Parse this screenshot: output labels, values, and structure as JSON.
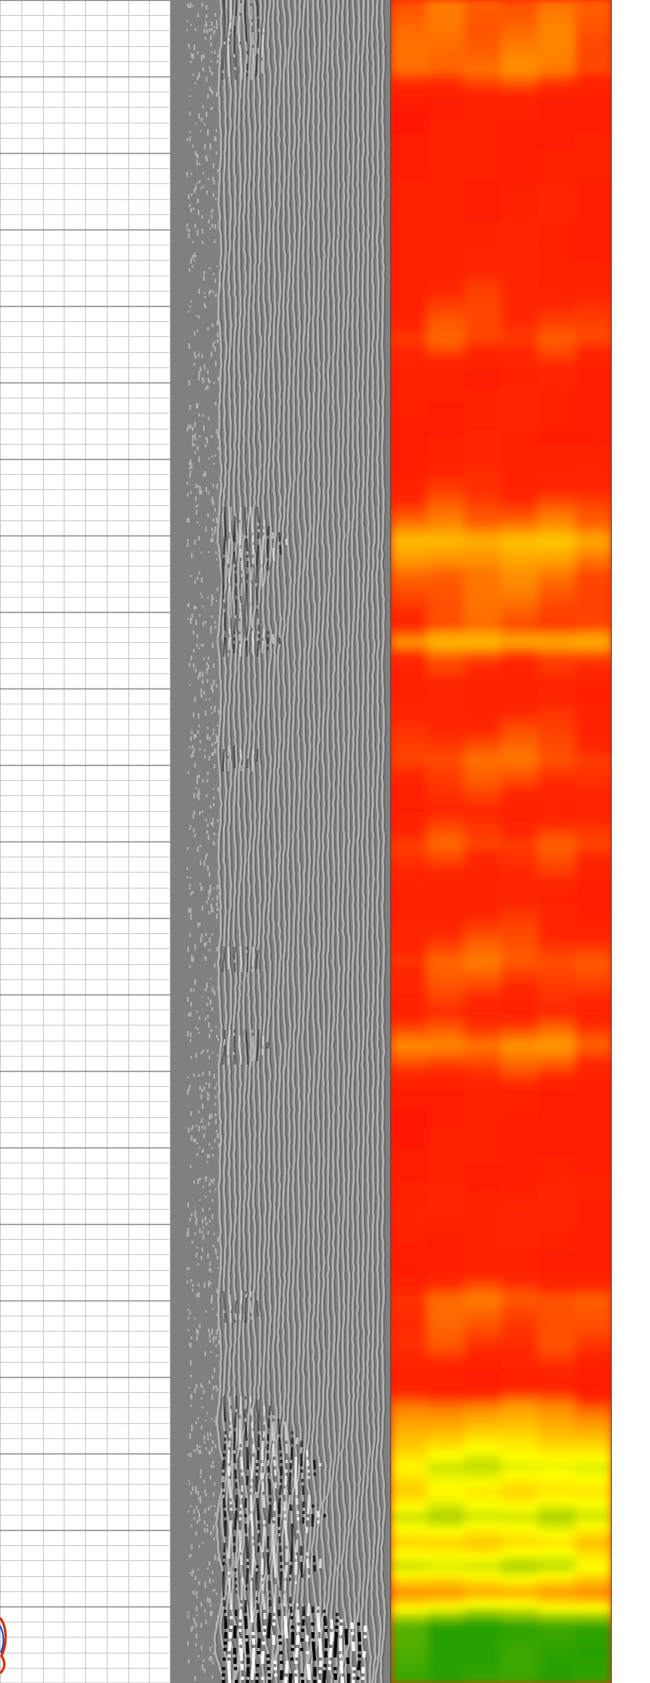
{
  "colors": {
    "grid_minor": "#c8c8c8",
    "grid_major": "#8a8a8a",
    "waveform_background": "#808080",
    "waveform_light": "#b4b4b4",
    "waveform_dark": "#000000",
    "waveform_bright": "#ffffff",
    "heatmap_red": "#ff1a00",
    "heatmap_orange": "#ff8c00",
    "heatmap_yellow": "#ffff00",
    "heatmap_green": "#33a000",
    "heatmap_border": "#444444"
  },
  "grid": {
    "minor_columns": 8,
    "minor_rows_per_major": 5,
    "major_rows": 22
  },
  "amplitude_profile": [
    {
      "depth": 0.0,
      "level": 0.5
    },
    {
      "depth": 0.04,
      "level": 0.55
    },
    {
      "depth": 0.06,
      "level": 0.2
    },
    {
      "depth": 0.13,
      "level": 0.25
    },
    {
      "depth": 0.16,
      "level": 0.3
    },
    {
      "depth": 0.2,
      "level": 0.45
    },
    {
      "depth": 0.22,
      "level": 0.25
    },
    {
      "depth": 0.26,
      "level": 0.25
    },
    {
      "depth": 0.29,
      "level": 0.35
    },
    {
      "depth": 0.31,
      "level": 0.55
    },
    {
      "depth": 0.32,
      "level": 0.8
    },
    {
      "depth": 0.34,
      "level": 0.55
    },
    {
      "depth": 0.37,
      "level": 0.45
    },
    {
      "depth": 0.38,
      "level": 0.75
    },
    {
      "depth": 0.39,
      "level": 0.4
    },
    {
      "depth": 0.41,
      "level": 0.25
    },
    {
      "depth": 0.45,
      "level": 0.5
    },
    {
      "depth": 0.48,
      "level": 0.3
    },
    {
      "depth": 0.5,
      "level": 0.45
    },
    {
      "depth": 0.53,
      "level": 0.25
    },
    {
      "depth": 0.57,
      "level": 0.5
    },
    {
      "depth": 0.6,
      "level": 0.3
    },
    {
      "depth": 0.62,
      "level": 0.6
    },
    {
      "depth": 0.65,
      "level": 0.2
    },
    {
      "depth": 0.69,
      "level": 0.2
    },
    {
      "depth": 0.72,
      "level": 0.3
    },
    {
      "depth": 0.75,
      "level": 0.2
    },
    {
      "depth": 0.77,
      "level": 0.5
    },
    {
      "depth": 0.8,
      "level": 0.4
    },
    {
      "depth": 0.82,
      "level": 0.2
    },
    {
      "depth": 0.835,
      "level": 0.6
    },
    {
      "depth": 0.85,
      "level": 0.85
    },
    {
      "depth": 0.87,
      "level": 1.15
    },
    {
      "depth": 0.885,
      "level": 0.95
    },
    {
      "depth": 0.9,
      "level": 1.2
    },
    {
      "depth": 0.915,
      "level": 0.9
    },
    {
      "depth": 0.93,
      "level": 1.2
    },
    {
      "depth": 0.945,
      "level": 0.7
    },
    {
      "depth": 0.965,
      "level": 1.6
    },
    {
      "depth": 1.0,
      "level": 1.6
    }
  ]
}
